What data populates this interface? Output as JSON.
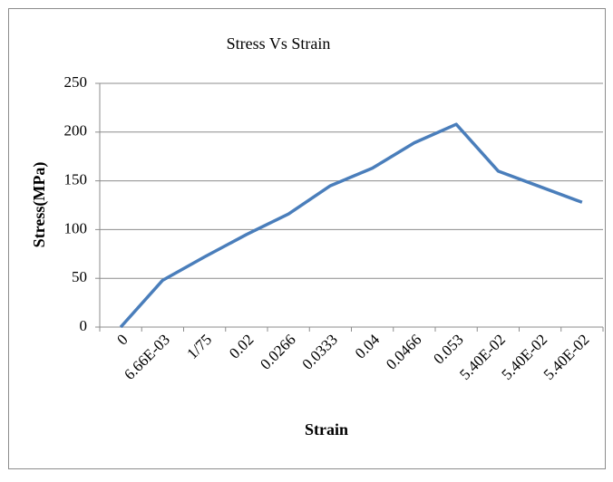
{
  "chart_data": {
    "type": "line",
    "title": "Stress Vs Strain",
    "x_label": "Strain",
    "y_label": "Stress(MPa)",
    "categories": [
      "0",
      "6.66E-03",
      "1/75",
      "0.02",
      "0.0266",
      "0.0333",
      "0.04",
      "0.0466",
      "0.053",
      "5.40E-02",
      "5.40E-02",
      "5.40E-02"
    ],
    "series": [
      {
        "name": "Stress",
        "color": "#4a7ebb",
        "values": [
          0,
          48,
          72,
          95,
          116,
          145,
          163,
          189,
          208,
          160,
          144,
          128
        ]
      }
    ],
    "ylim": [
      0,
      250
    ],
    "yticks": [
      0,
      50,
      100,
      150,
      200,
      250
    ],
    "grid": true,
    "legend": false
  }
}
